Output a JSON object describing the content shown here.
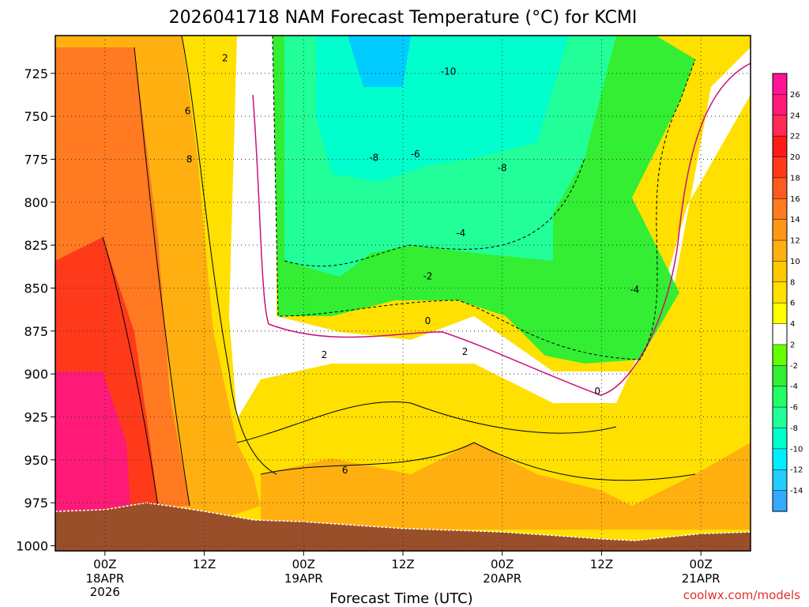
{
  "chart_data": {
    "type": "heatmap",
    "title": "2026041718 NAM Forecast Temperature (°C) for KCMI",
    "xlabel": "Forecast Time (UTC)",
    "ylabel": "",
    "x_ticks": [
      {
        "label": "00Z",
        "sub": [
          "18APR",
          "2026"
        ]
      },
      {
        "label": "12Z",
        "sub": []
      },
      {
        "label": "00Z",
        "sub": [
          "19APR"
        ]
      },
      {
        "label": "12Z",
        "sub": []
      },
      {
        "label": "00Z",
        "sub": [
          "20APR"
        ]
      },
      {
        "label": "12Z",
        "sub": []
      },
      {
        "label": "00Z",
        "sub": [
          "21APR"
        ]
      }
    ],
    "x_hours": [
      0,
      12,
      24,
      36,
      48,
      60,
      72
    ],
    "x_range_hours": [
      -6,
      78
    ],
    "y_ticks": [
      725,
      750,
      775,
      800,
      825,
      850,
      875,
      900,
      925,
      950,
      975,
      1000
    ],
    "y_range_hpa": [
      703,
      1003
    ],
    "y_axis_reversed": true,
    "grid": "dotted",
    "colorbar": {
      "placement": "right",
      "labels": [
        "26",
        "24",
        "22",
        "20",
        "18",
        "16",
        "14",
        "12",
        "10",
        "8",
        "6",
        "4",
        "2",
        "-2",
        "-4",
        "-6",
        "-8",
        "-10",
        "-12",
        "-14"
      ],
      "colors": [
        "#ff1493",
        "#ff1a78",
        "#ff2a55",
        "#ff1a1a",
        "#ff3a1a",
        "#ff5a20",
        "#ff7a20",
        "#ff9818",
        "#ffb010",
        "#ffc800",
        "#ffe000",
        "#ffff00",
        "#ffffff",
        "#66ff00",
        "#33ee33",
        "#22ff66",
        "#22ff99",
        "#00ffcc",
        "#00eeff",
        "#22ccff",
        "#33aaff"
      ]
    },
    "contour_labels": [
      {
        "text": "2",
        "h": 14.5,
        "p": 716
      },
      {
        "text": "6",
        "h": 10.0,
        "p": 747
      },
      {
        "text": "8",
        "h": 10.2,
        "p": 775
      },
      {
        "text": "-10",
        "h": 41.5,
        "p": 724
      },
      {
        "text": "-8",
        "h": 32.5,
        "p": 774
      },
      {
        "text": "-6",
        "h": 37.5,
        "p": 772
      },
      {
        "text": "-8",
        "h": 48.0,
        "p": 780
      },
      {
        "text": "-4",
        "h": 43.0,
        "p": 818
      },
      {
        "text": "-2",
        "h": 39.0,
        "p": 843
      },
      {
        "text": "-4",
        "h": 64.0,
        "p": 851
      },
      {
        "text": "0",
        "h": 39.0,
        "p": 869
      },
      {
        "text": "2",
        "h": 26.5,
        "p": 889
      },
      {
        "text": "2",
        "h": 43.5,
        "p": 887
      },
      {
        "text": "0",
        "h": 59.5,
        "p": 910
      },
      {
        "text": "6",
        "h": 29.0,
        "p": 956
      }
    ],
    "surface": [
      {
        "h": -6,
        "p": 980
      },
      {
        "h": 0,
        "p": 979
      },
      {
        "h": 5,
        "p": 975
      },
      {
        "h": 8,
        "p": 977
      },
      {
        "h": 12,
        "p": 980
      },
      {
        "h": 18,
        "p": 985
      },
      {
        "h": 24,
        "p": 986
      },
      {
        "h": 30,
        "p": 988
      },
      {
        "h": 36,
        "p": 990
      },
      {
        "h": 42,
        "p": 991
      },
      {
        "h": 48,
        "p": 992
      },
      {
        "h": 54,
        "p": 994
      },
      {
        "h": 60,
        "p": 996
      },
      {
        "h": 64,
        "p": 997
      },
      {
        "h": 68,
        "p": 995
      },
      {
        "h": 72,
        "p": 993
      },
      {
        "h": 78,
        "p": 992
      }
    ]
  },
  "credit": "coolwx.com/models"
}
